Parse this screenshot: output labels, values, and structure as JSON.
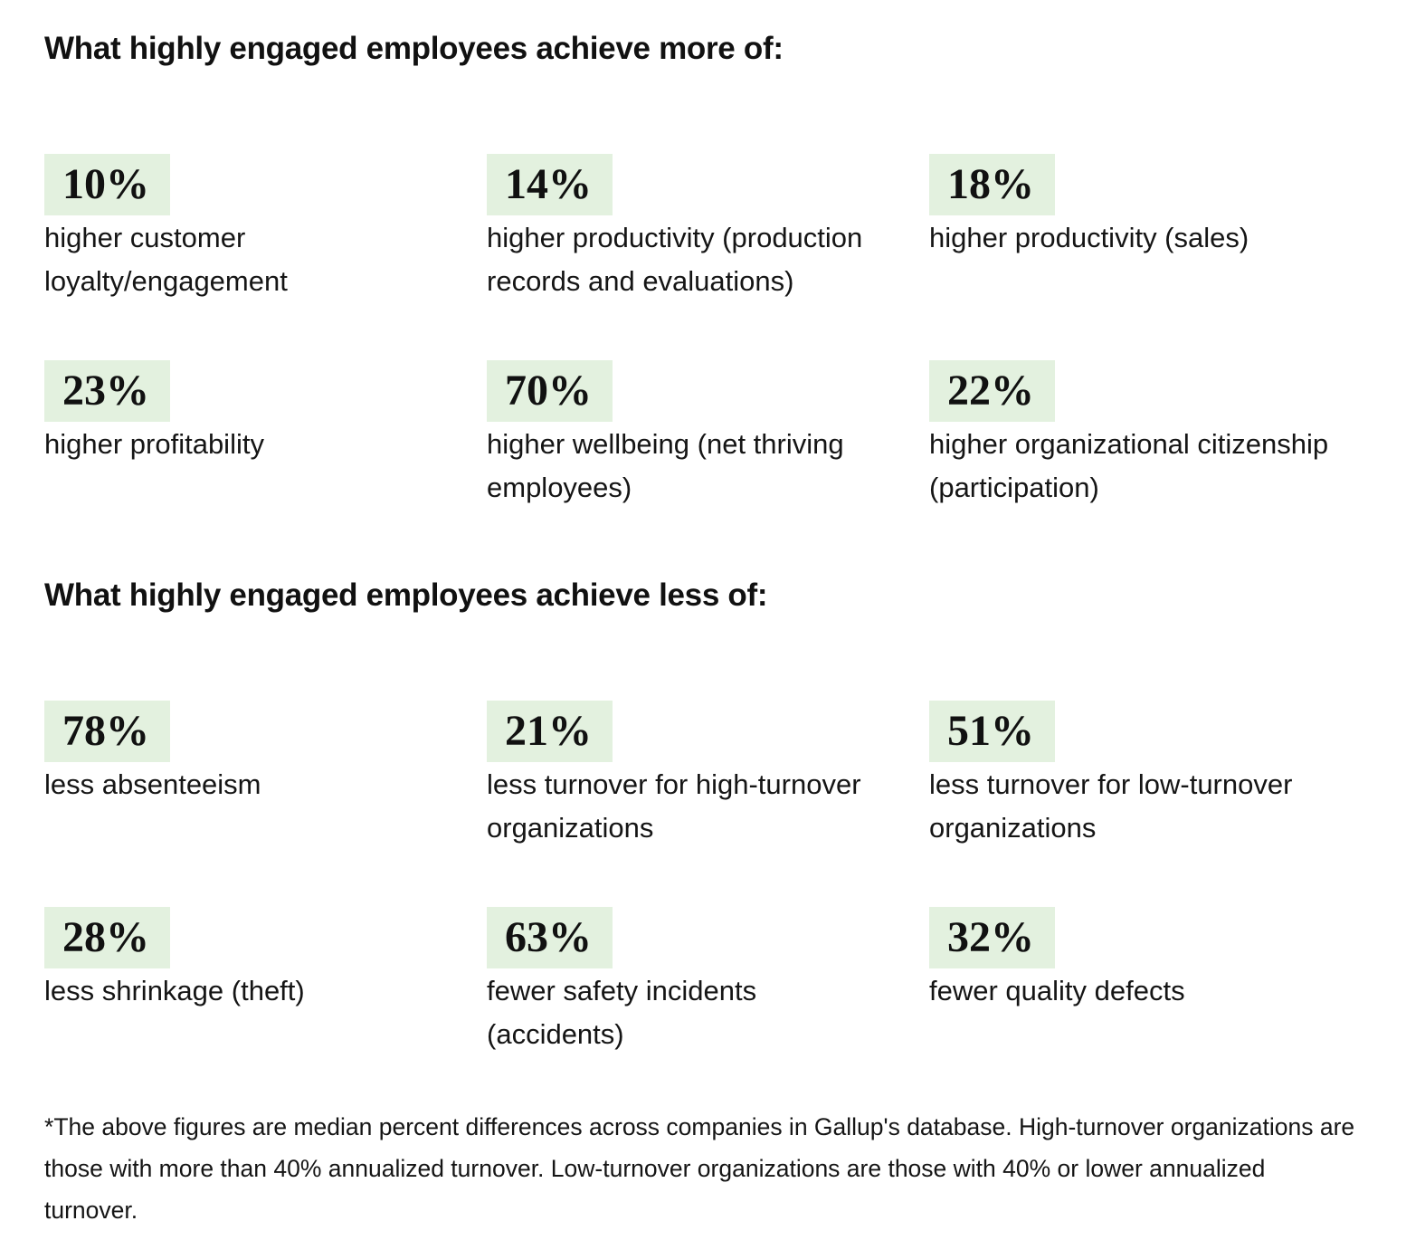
{
  "section_more": {
    "heading": "What highly engaged employees achieve more of:",
    "stats": [
      {
        "value": "10%",
        "label": "higher customer loyalty/engagement"
      },
      {
        "value": "14%",
        "label": "higher productivity (production records and evaluations)"
      },
      {
        "value": "18%",
        "label": "higher productivity (sales)"
      },
      {
        "value": "23%",
        "label": "higher profitability"
      },
      {
        "value": "70%",
        "label": "higher wellbeing (net thriving employees)"
      },
      {
        "value": "22%",
        "label": "higher organizational citizenship (participation)"
      }
    ]
  },
  "section_less": {
    "heading": "What highly engaged employees achieve less of:",
    "stats": [
      {
        "value": "78%",
        "label": "less absenteeism"
      },
      {
        "value": "21%",
        "label": "less turnover for high-turnover organizations"
      },
      {
        "value": "51%",
        "label": "less turnover for low-turnover organizations"
      },
      {
        "value": "28%",
        "label": "less shrinkage (theft)"
      },
      {
        "value": "63%",
        "label": "fewer safety incidents (accidents)"
      },
      {
        "value": "32%",
        "label": "fewer quality defects"
      }
    ]
  },
  "footnote": "*The above figures are median percent differences across companies in Gallup's database. High-turnover organizations are those with more than 40% annualized turnover. Low-turnover organizations are those with 40% or lower annualized turnover.",
  "colors": {
    "badge_background": "#e3f1df",
    "text": "#111111"
  }
}
